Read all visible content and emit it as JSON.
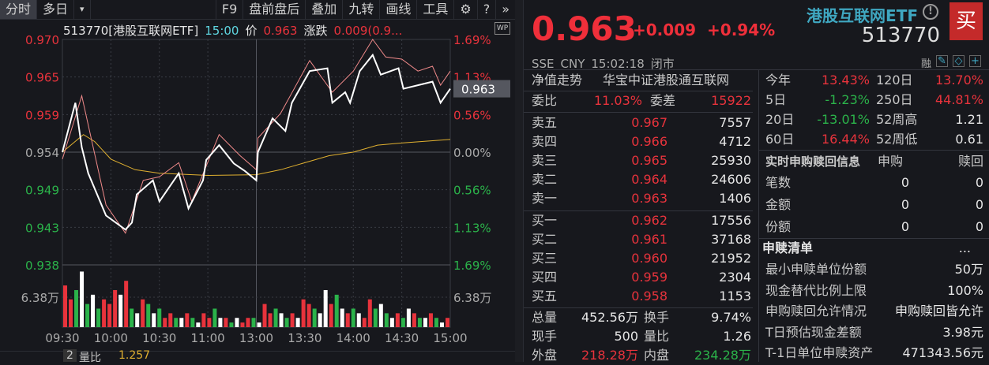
{
  "toolbar": {
    "tabs": [
      "分时",
      "多日"
    ],
    "filter_icon": "filter-icon",
    "items": [
      "F9",
      "盘前盘后",
      "叠加",
      "九转",
      "画线",
      "工具"
    ],
    "icons": [
      "gear-icon",
      "help-icon",
      "double-chevron-right-icon"
    ]
  },
  "info": {
    "code_name": "513770[港股互联网ETF]",
    "time": "15:00",
    "price_label": "价",
    "price": "0.963",
    "change_label": "涨跌",
    "change": "0.009(0.9...",
    "wp": "WP"
  },
  "chart_data": {
    "type": "line",
    "x_ticks": [
      "09:30",
      "10:00",
      "10:30",
      "11:00",
      "13:00",
      "13:30",
      "14:00",
      "14:30",
      "15:00"
    ],
    "y_left_ticks": [
      "0.970",
      "0.965",
      "0.959",
      "0.954",
      "0.949",
      "0.943",
      "0.938"
    ],
    "y_right_ticks": [
      "1.69%",
      "1.13%",
      "0.56%",
      "0.00%",
      "0.56%",
      "1.13%",
      "1.69%"
    ],
    "ylim": [
      0.938,
      0.97
    ],
    "prev_close": 0.954,
    "last_price_tag": "0.963",
    "volume_tick": "6.38万",
    "colors": {
      "price": "#ffffff",
      "reference": "#f08a8a",
      "average": "#e0b030",
      "up": "#e8333c",
      "down": "#2bb34a"
    },
    "series": [
      {
        "role": "price",
        "points": [
          [
            "09:30",
            0.954
          ],
          [
            "09:38",
            0.961
          ],
          [
            "09:42",
            0.9547
          ],
          [
            "09:46",
            0.951
          ],
          [
            "09:57",
            0.945
          ],
          [
            "10:09",
            0.943
          ],
          [
            "10:13",
            0.944
          ],
          [
            "10:16",
            0.948
          ],
          [
            "10:26",
            0.95
          ],
          [
            "10:30",
            0.947
          ],
          [
            "10:42",
            0.951
          ],
          [
            "10:48",
            0.946
          ],
          [
            "10:57",
            0.95
          ],
          [
            "10:59",
            0.9529
          ],
          [
            "11:07",
            0.955
          ],
          [
            "11:16",
            0.9524
          ],
          [
            "11:23",
            0.9513
          ],
          [
            "11:30",
            0.95
          ],
          [
            "13:01",
            0.954
          ],
          [
            "13:10",
            0.9588
          ],
          [
            "13:18",
            0.957
          ],
          [
            "13:22",
            0.961
          ],
          [
            "13:33",
            0.9655
          ],
          [
            "13:44",
            0.9659
          ],
          [
            "13:47",
            0.961
          ],
          [
            "13:55",
            0.9625
          ],
          [
            "13:58",
            0.961
          ],
          [
            "14:04",
            0.9655
          ],
          [
            "14:12",
            0.9678
          ],
          [
            "14:17",
            0.965
          ],
          [
            "14:28",
            0.9659
          ],
          [
            "14:31",
            0.963
          ],
          [
            "14:49",
            0.964
          ],
          [
            "14:54",
            0.961
          ],
          [
            "15:00",
            0.963
          ]
        ]
      },
      {
        "role": "reference",
        "points": [
          [
            "09:30",
            0.953
          ],
          [
            "09:42",
            0.962
          ],
          [
            "09:57",
            0.9465
          ],
          [
            "10:09",
            0.9425
          ],
          [
            "10:20",
            0.95
          ],
          [
            "10:30",
            0.9505
          ],
          [
            "10:42",
            0.9525
          ],
          [
            "10:50",
            0.947
          ],
          [
            "11:07",
            0.9565
          ],
          [
            "11:20",
            0.9535
          ],
          [
            "11:30",
            0.9515
          ],
          [
            "13:01",
            0.956
          ],
          [
            "13:15",
            0.9595
          ],
          [
            "13:33",
            0.967
          ],
          [
            "13:47",
            0.9625
          ],
          [
            "14:00",
            0.9655
          ],
          [
            "14:12",
            0.97
          ],
          [
            "14:20",
            0.9675
          ],
          [
            "14:30",
            0.9672
          ],
          [
            "14:40",
            0.9655
          ],
          [
            "14:49",
            0.9662
          ],
          [
            "14:54",
            0.9635
          ],
          [
            "15:00",
            0.9655
          ]
        ]
      },
      {
        "role": "average",
        "points": [
          [
            "09:30",
            0.954
          ],
          [
            "09:43",
            0.9565
          ],
          [
            "09:50",
            0.9555
          ],
          [
            "10:00",
            0.953
          ],
          [
            "10:15",
            0.9515
          ],
          [
            "10:30",
            0.951
          ],
          [
            "11:00",
            0.9507
          ],
          [
            "11:30",
            0.9508
          ],
          [
            "13:15",
            0.9515
          ],
          [
            "13:30",
            0.9525
          ],
          [
            "13:45",
            0.9535
          ],
          [
            "14:00",
            0.954
          ],
          [
            "14:15",
            0.955
          ],
          [
            "14:30",
            0.9553
          ],
          [
            "15:00",
            0.9558
          ]
        ]
      }
    ],
    "volume": {
      "unit": "万",
      "values": [
        9,
        6,
        8,
        12,
        5,
        7,
        4,
        6,
        5,
        8,
        7,
        10,
        4,
        3,
        6,
        5,
        3,
        4,
        2,
        3,
        2,
        2,
        3,
        2,
        1,
        3,
        2,
        4,
        2,
        2,
        1,
        2,
        1,
        2,
        2,
        1,
        5,
        3,
        4,
        3,
        2,
        3,
        2,
        6,
        5,
        4,
        3,
        8,
        5,
        7,
        4,
        3,
        4,
        3,
        2,
        6,
        4,
        5,
        3,
        2,
        3,
        2,
        4,
        3,
        2,
        2,
        3,
        2,
        1,
        2
      ],
      "dir": [
        1,
        1,
        -1,
        0,
        -1,
        0,
        -1,
        1,
        1,
        1,
        0,
        1,
        -1,
        0,
        1,
        -1,
        0,
        -1,
        1,
        1,
        -1,
        0,
        1,
        -1,
        0,
        1,
        1,
        -1,
        0,
        1,
        -1,
        0,
        1,
        1,
        -1,
        0,
        1,
        1,
        -1,
        0,
        -1,
        1,
        0,
        1,
        1,
        -1,
        0,
        0,
        1,
        -1,
        0,
        1,
        -1,
        0,
        1,
        1,
        -1,
        0,
        -1,
        0,
        1,
        -1,
        0,
        1,
        -1,
        0,
        1,
        -1,
        0,
        1
      ]
    }
  },
  "bottom": {
    "num": "2",
    "label": "量比",
    "value": "1.257"
  },
  "quote": {
    "price": "0.963",
    "change": "+0.009",
    "pct": "+0.94%",
    "name": "港股互联网ETF",
    "code": "513770",
    "buy": "买",
    "warn": "!",
    "market": [
      "SSE",
      "CNY",
      "15:02:18",
      "闭市"
    ],
    "margin": "融"
  },
  "nav": {
    "label": "净值走势",
    "index": "华宝中证港股通互联网"
  },
  "ratio": {
    "wb_label": "委比",
    "wb": "11.03%",
    "wc_label": "委差",
    "wc": "15922"
  },
  "asks": [
    {
      "l": "卖五",
      "p": "0.967",
      "v": "7557"
    },
    {
      "l": "卖四",
      "p": "0.966",
      "v": "4712"
    },
    {
      "l": "卖三",
      "p": "0.965",
      "v": "25930"
    },
    {
      "l": "卖二",
      "p": "0.964",
      "v": "24606"
    },
    {
      "l": "卖一",
      "p": "0.963",
      "v": "1406"
    }
  ],
  "bids": [
    {
      "l": "买一",
      "p": "0.962",
      "v": "17556"
    },
    {
      "l": "买二",
      "p": "0.961",
      "v": "37168"
    },
    {
      "l": "买三",
      "p": "0.960",
      "v": "21952"
    },
    {
      "l": "买四",
      "p": "0.959",
      "v": "2304"
    },
    {
      "l": "买五",
      "p": "0.958",
      "v": "1153"
    }
  ],
  "stats": {
    "vol_l": "总量",
    "vol": "452.56万",
    "turn_l": "换手",
    "turn": "9.74%",
    "cur_l": "现手",
    "cur": "500",
    "qr_l": "量比",
    "qr": "1.26",
    "out_l": "外盘",
    "out": "218.28万",
    "in_l": "内盘",
    "in": "234.28万"
  },
  "perf": [
    {
      "a": "今年",
      "av": "13.43%",
      "b": "120日",
      "bv": "13.70%"
    },
    {
      "a": "5日",
      "av": "-1.23%",
      "b": "250日",
      "bv": "44.81%"
    },
    {
      "a": "20日",
      "av": "-13.01%",
      "b": "52周高",
      "bv": "1.21"
    },
    {
      "a": "60日",
      "av": "16.44%",
      "b": "52周低",
      "bv": "0.61"
    }
  ],
  "realtime": {
    "title": "实时申购赎回信息",
    "sub": "申购",
    "red": "赎回",
    "rows": [
      {
        "l": "笔数",
        "a": "0",
        "b": "0"
      },
      {
        "l": "金额",
        "a": "0",
        "b": "0"
      },
      {
        "l": "份额",
        "a": "0",
        "b": "0"
      }
    ]
  },
  "list": {
    "title": "申赎清单",
    "more": "...",
    "rows": [
      {
        "l": "最小申赎单位份额",
        "v": "50万"
      },
      {
        "l": "现金替代比例上限",
        "v": "100%"
      },
      {
        "l": "申购赎回允许情况",
        "v": "申购赎回皆允许"
      },
      {
        "l": "T日预估现金差额",
        "v": "3.98元"
      },
      {
        "l": "T-1日单位申赎资产",
        "v": "471343.56元"
      }
    ]
  }
}
